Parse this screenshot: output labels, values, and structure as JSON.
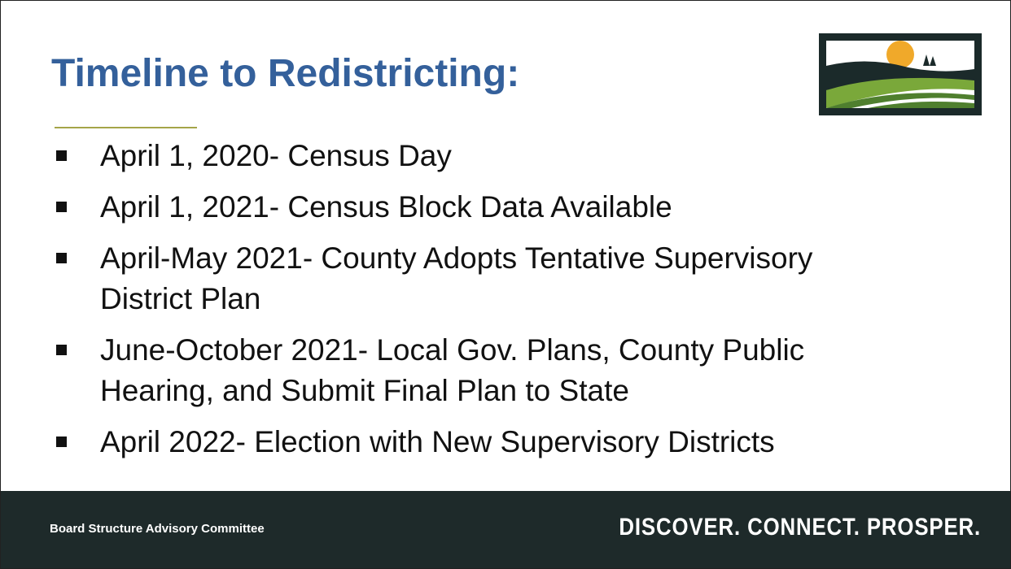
{
  "title": "Timeline to Redistricting:",
  "items": [
    [
      "April 1, 2020- Census Day"
    ],
    [
      "April 1, 2021- Census Block Data Available"
    ],
    [
      "April-May 2021- County Adopts Tentative Supervisory",
      "District Plan"
    ],
    [
      "June-October 2021- Local Gov. Plans, County Public",
      "Hearing, and Submit Final Plan to State"
    ],
    [
      "April 2022- Election with New Supervisory Districts"
    ]
  ],
  "footer": {
    "left": "Board Structure Advisory Committee",
    "right": "DISCOVER. CONNECT. PROSPER."
  }
}
